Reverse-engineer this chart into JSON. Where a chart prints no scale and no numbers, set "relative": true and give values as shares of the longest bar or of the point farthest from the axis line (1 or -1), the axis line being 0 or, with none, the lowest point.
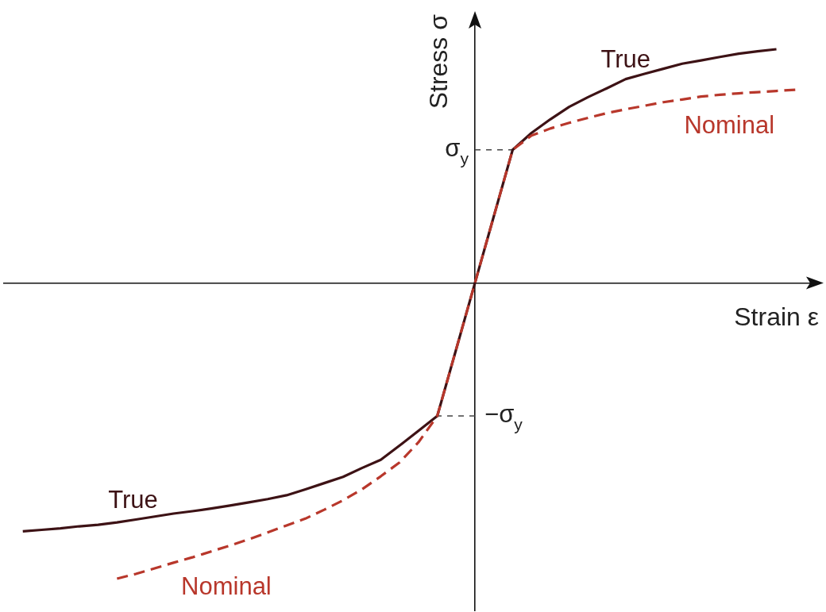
{
  "chart_data": {
    "type": "line",
    "relative": true,
    "xlabel": "Strain ε",
    "ylabel": "Stress σ",
    "marker": "none",
    "categories": [
      null,
      null,
      null,
      null,
      null,
      null,
      null,
      null,
      null,
      null,
      null,
      null,
      null,
      null,
      null,
      null,
      null,
      null,
      null,
      null,
      null,
      null,
      null,
      null,
      null,
      null,
      null,
      null,
      null,
      null,
      null,
      null,
      null,
      null,
      null,
      null,
      null,
      null,
      null,
      null,
      null,
      null,
      null,
      null
    ],
    "series": [
      {
        "name": "True",
        "color": "#3d1215",
        "line_style": "solid",
        "values": [
          null,
          -0.84,
          -0.835,
          -0.83,
          -0.823,
          -0.818,
          -0.81,
          -0.8,
          -0.79,
          -0.78,
          -0.772,
          -0.763,
          -0.753,
          -0.742,
          -0.731,
          -0.718,
          -0.698,
          -0.677,
          -0.656,
          -0.626,
          -0.598,
          -0.55,
          -0.5,
          -0.45,
          -0.225,
          0,
          0.225,
          0.45,
          0.507,
          0.553,
          0.595,
          0.628,
          0.658,
          0.689,
          0.707,
          0.724,
          0.741,
          0.752,
          0.764,
          0.775,
          0.783,
          0.79,
          null,
          null
        ]
      },
      {
        "name": "Nominal",
        "color": "#b8372b",
        "line_style": "dashed",
        "values": [
          null,
          null,
          null,
          null,
          null,
          null,
          -1.0,
          -0.984,
          -0.965,
          -0.946,
          -0.928,
          -0.908,
          -0.888,
          -0.867,
          -0.844,
          -0.82,
          -0.797,
          -0.767,
          -0.735,
          -0.698,
          -0.654,
          -0.607,
          -0.539,
          -0.45,
          -0.225,
          0,
          0.225,
          0.45,
          0.498,
          0.522,
          0.541,
          0.558,
          0.574,
          0.587,
          0.599,
          0.611,
          0.62,
          0.63,
          0.636,
          0.641,
          0.645,
          0.649,
          0.653,
          null
        ]
      }
    ],
    "ref_lines": [
      {
        "axis": "y",
        "value": 0.45,
        "label": "σ$_{y}$",
        "color": "#444444",
        "line_style": "dashed"
      },
      {
        "axis": "y",
        "value": -0.45,
        "label": "−σ$_{y}$",
        "color": "#444444",
        "line_style": "dashed"
      }
    ]
  }
}
